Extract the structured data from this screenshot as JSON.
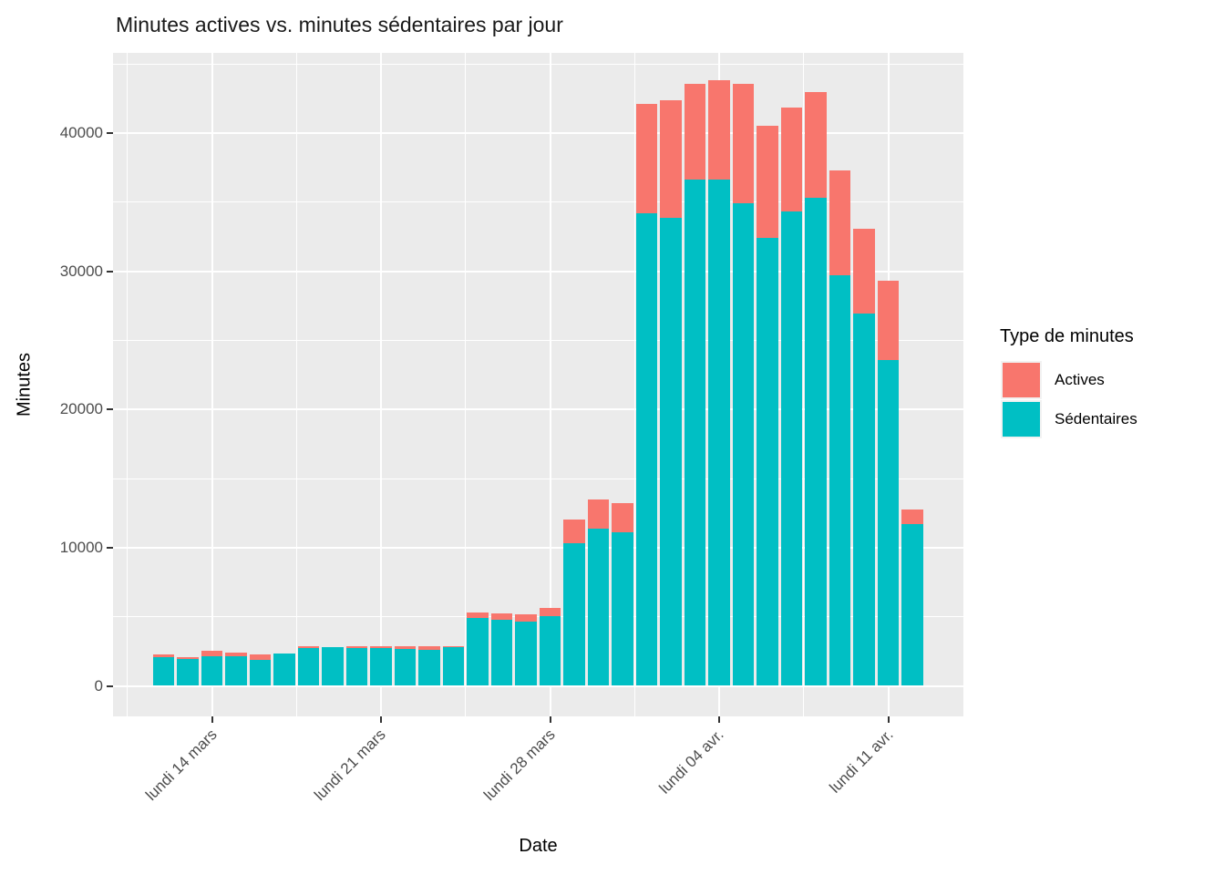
{
  "title": "Minutes actives vs. minutes sédentaires par jour",
  "axes": {
    "x": {
      "title": "Date",
      "tick_labels": [
        "lundi 14 mars",
        "lundi 21 mars",
        "lundi 28 mars",
        "lundi 04 avr.",
        "lundi 11 avr."
      ],
      "tick_category_indices": [
        2,
        9,
        16,
        23,
        30
      ]
    },
    "y": {
      "title": "Minutes",
      "tick_labels": [
        "0",
        "10000",
        "20000",
        "30000",
        "40000"
      ],
      "tick_values": [
        0,
        10000,
        20000,
        30000,
        40000
      ],
      "minor_tick_values": [
        5000,
        15000,
        25000,
        35000,
        45000
      ]
    }
  },
  "legend": {
    "title": "Type de minutes",
    "items": [
      {
        "label": "Actives",
        "color": "#F8766D"
      },
      {
        "label": "Sédentaires",
        "color": "#00BFC4"
      }
    ]
  },
  "colors": {
    "panel_bg": "#EBEBEB",
    "grid": "#FFFFFF",
    "tick_text": "#4D4D4D",
    "axis_tick_mark": "#333333",
    "actives": "#F8766D",
    "sedentaires": "#00BFC4"
  },
  "chart_data": {
    "type": "bar",
    "stacked": true,
    "title": "Minutes actives vs. minutes sédentaires par jour",
    "xlabel": "Date",
    "ylabel": "Minutes",
    "ylim": [
      0,
      45000
    ],
    "grid": "major+minor",
    "legend_position": "right",
    "categories": [
      "12 mars",
      "13 mars",
      "14 mars",
      "15 mars",
      "16 mars",
      "17 mars",
      "18 mars",
      "19 mars",
      "20 mars",
      "21 mars",
      "22 mars",
      "23 mars",
      "24 mars",
      "25 mars",
      "26 mars",
      "27 mars",
      "28 mars",
      "29 mars",
      "30 mars",
      "31 mars",
      "01 avr.",
      "02 avr.",
      "03 avr.",
      "04 avr.",
      "05 avr.",
      "06 avr.",
      "07 avr.",
      "08 avr.",
      "09 avr.",
      "10 avr.",
      "11 avr.",
      "12 avr."
    ],
    "series": [
      {
        "name": "Sédentaires",
        "color": "#00BFC4",
        "values": [
          2050,
          1950,
          2150,
          2150,
          1850,
          2350,
          2750,
          2800,
          2750,
          2750,
          2650,
          2600,
          2800,
          4900,
          4800,
          4650,
          5050,
          10350,
          11400,
          11100,
          34200,
          33900,
          36650,
          36650,
          34950,
          32450,
          34350,
          35300,
          29700,
          26950,
          23600,
          11700
        ]
      },
      {
        "name": "Actives",
        "color": "#F8766D",
        "values": [
          250,
          100,
          400,
          250,
          400,
          0,
          100,
          0,
          100,
          100,
          200,
          300,
          100,
          400,
          450,
          550,
          600,
          1700,
          2100,
          2100,
          7900,
          8500,
          6900,
          7150,
          8650,
          8100,
          7500,
          7650,
          7600,
          6100,
          5750,
          1050
        ]
      }
    ],
    "x_major_gridline_category_indices": [
      2,
      9,
      16,
      23,
      30
    ],
    "x_minor_gridline_category_indices": [
      -1.5,
      5.5,
      12.5,
      19.5,
      26.5
    ]
  }
}
